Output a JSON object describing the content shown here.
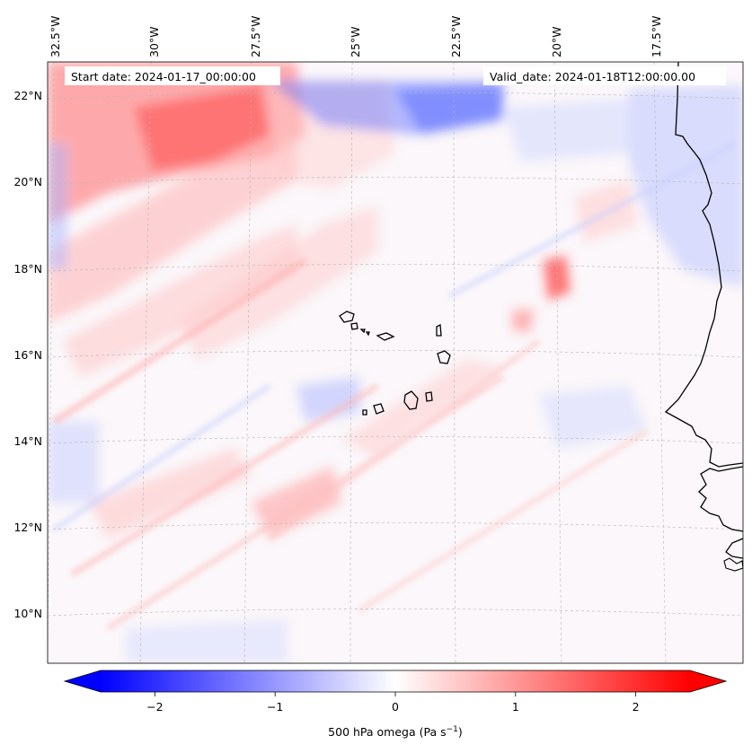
{
  "map": {
    "start_date": "Start date: 2024-01-17_00:00:00",
    "valid_date": "Valid_date: 2024-01-18T12:00:00.00",
    "longitude_labels": [
      "32.5°W",
      "30°W",
      "27.5°W",
      "25°W",
      "22.5°W",
      "20°W",
      "17.5°W"
    ],
    "latitude_labels": [
      "22°N",
      "20°N",
      "18°N",
      "16°N",
      "14°N",
      "12°N",
      "10°N"
    ],
    "variable": "500 hPa omega",
    "units": "Pa s",
    "units_exponent": "−1",
    "colormap": "bwr",
    "colors": {
      "negative": "#0000ff",
      "zero": "#ffffff",
      "positive": "#ff0000",
      "coastline": "#000000"
    }
  },
  "colorbar": {
    "ticks": [
      "−2",
      "−1",
      "0",
      "1",
      "2"
    ],
    "range": [
      -2.75,
      2.75
    ],
    "extend": "both"
  }
}
